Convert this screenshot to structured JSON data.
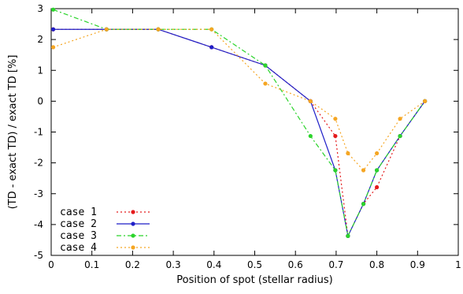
{
  "chart_data": {
    "type": "line",
    "xlabel": "Position of spot (stellar radius)",
    "ylabel": "(TD - exact TD) / exact TD  [%]",
    "xlim": [
      0,
      1
    ],
    "ylim": [
      -5,
      3
    ],
    "xticks": [
      0,
      0.1,
      0.2,
      0.3,
      0.4,
      0.5,
      0.6,
      0.7,
      0.8,
      0.9,
      1
    ],
    "yticks": [
      -5,
      -4,
      -3,
      -2,
      -1,
      0,
      1,
      2,
      3
    ],
    "xtick_labels": [
      "0",
      "0.1",
      "0.2",
      "0.3",
      "0.4",
      "0.5",
      "0.6",
      "0.7",
      "0.8",
      "0.9",
      "1"
    ],
    "ytick_labels": [
      "-5",
      "-4",
      "-3",
      "-2",
      "-1",
      "0",
      "1",
      "2",
      "3"
    ],
    "grid": false,
    "legend_position": "bottom-left",
    "series": [
      {
        "name": "case  1",
        "color": "#e41a1c",
        "dash": "dotted",
        "x": [
          0.005,
          0.136,
          0.263,
          0.394,
          0.526,
          0.637,
          0.698,
          0.729,
          0.767,
          0.8,
          0.857,
          0.918
        ],
        "y": [
          2.33,
          2.33,
          2.33,
          1.75,
          1.16,
          0,
          -1.13,
          -4.37,
          -3.33,
          -2.79,
          -1.13,
          0
        ]
      },
      {
        "name": "case  2",
        "color": "#1f1fc8",
        "dash": "solid",
        "x": [
          0.005,
          0.136,
          0.263,
          0.394,
          0.526,
          0.637,
          0.698,
          0.729,
          0.767,
          0.8,
          0.857,
          0.918
        ],
        "y": [
          2.33,
          2.33,
          2.33,
          1.75,
          1.16,
          0,
          -2.24,
          -4.37,
          -3.33,
          -2.24,
          -1.13,
          0
        ]
      },
      {
        "name": "case  3",
        "color": "#2bd42b",
        "dash": "dashdot",
        "x": [
          0.005,
          0.136,
          0.263,
          0.394,
          0.526,
          0.637,
          0.698,
          0.729,
          0.767,
          0.8,
          0.857,
          0.918
        ],
        "y": [
          2.97,
          2.33,
          2.33,
          2.33,
          1.16,
          -1.13,
          -2.24,
          -4.37,
          -3.33,
          -2.24,
          -1.13,
          0
        ]
      },
      {
        "name": "case  4",
        "color": "#f5a623",
        "dash": "dotted",
        "x": [
          0.005,
          0.136,
          0.263,
          0.394,
          0.526,
          0.637,
          0.698,
          0.729,
          0.767,
          0.8,
          0.857,
          0.918
        ],
        "y": [
          1.75,
          2.33,
          2.33,
          2.33,
          0.57,
          0,
          -0.57,
          -1.69,
          -2.24,
          -1.69,
          -0.57,
          0
        ]
      }
    ]
  }
}
